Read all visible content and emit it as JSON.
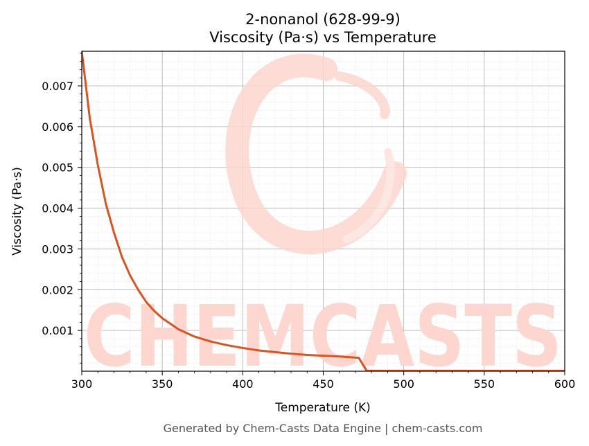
{
  "chart_data": {
    "type": "line",
    "title": "2-nonanol (628-99-9)",
    "subtitle": "Viscosity (Pa·s) vs Temperature",
    "xlabel": "Temperature (K)",
    "ylabel": "Viscosity (Pa·s)",
    "xlim": [
      300,
      600
    ],
    "ylim": [
      0,
      0.00785
    ],
    "x_ticks": [
      300,
      350,
      400,
      450,
      500,
      550,
      600
    ],
    "x_tick_labels": [
      "300",
      "350",
      "400",
      "450",
      "500",
      "550",
      "600"
    ],
    "y_ticks": [
      0.001,
      0.002,
      0.003,
      0.004,
      0.005,
      0.006,
      0.007
    ],
    "y_tick_labels": [
      "0.001",
      "0.002",
      "0.003",
      "0.004",
      "0.005",
      "0.006",
      "0.007"
    ],
    "grid": true,
    "series": [
      {
        "color": "#d9541e",
        "x": [
          300,
          305,
          310,
          315,
          320,
          325,
          330,
          335,
          340,
          345,
          350,
          360,
          370,
          380,
          390,
          400,
          410,
          420,
          430,
          440,
          450,
          460,
          472,
          477,
          480,
          500,
          550,
          600
        ],
        "y": [
          0.00785,
          0.0062,
          0.00505,
          0.0041,
          0.0034,
          0.0028,
          0.00235,
          0.002,
          0.0017,
          0.00148,
          0.0013,
          0.00103,
          0.00085,
          0.00073,
          0.00064,
          0.00057,
          0.00051,
          0.00047,
          0.00043,
          0.0004,
          0.00038,
          0.00036,
          0.00033,
          1e-05,
          1e-05,
          1e-05,
          1e-05,
          1e-05
        ]
      }
    ]
  },
  "watermark": {
    "text": "CHEMCASTS",
    "color": "#fdd6cf"
  },
  "footer": {
    "text": "Generated by Chem-Casts Data Engine | chem-casts.com"
  }
}
